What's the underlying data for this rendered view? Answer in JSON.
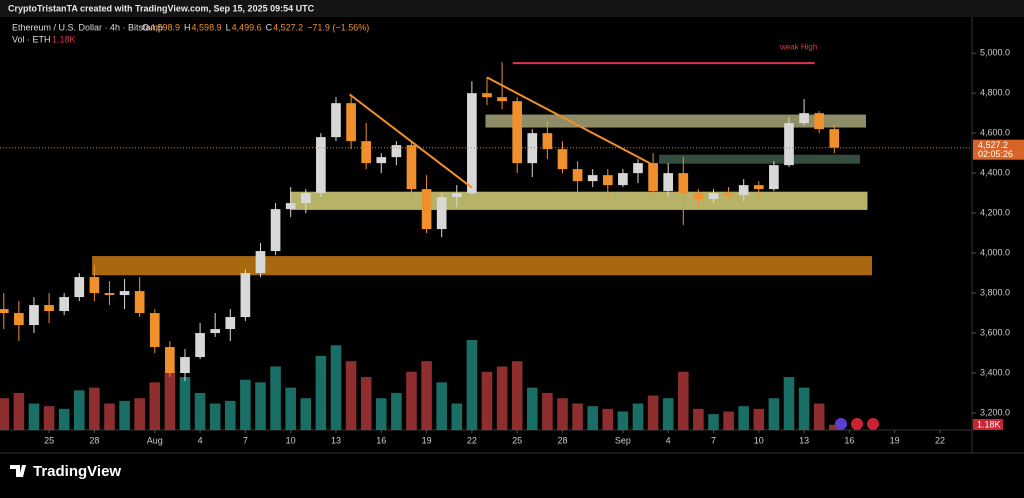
{
  "header": {
    "credit": "CryptoTristanTA created with TradingView.com, Sep 15, 2025 09:54 UTC",
    "brand": "TradingView"
  },
  "chart_data": {
    "type": "candlestick",
    "symbol": "Ethereum / U.S. Dollar · 4h · Bitstamp",
    "ohlc": [
      {
        "key": "O",
        "text": "4,598.9"
      },
      {
        "key": "H",
        "text": "4,598.9"
      },
      {
        "key": "L",
        "text": "4,499.6"
      },
      {
        "key": "C",
        "text": "4,527.2"
      },
      {
        "key": "",
        "text": "−71.9 (−1.56%)"
      }
    ],
    "volume_label": "Vol · ETH",
    "volume_text": "1.18K",
    "last_price": {
      "value": 4527.2,
      "label": "4,527.2"
    },
    "countdown": "02:05:26",
    "x": [
      22,
      23,
      24,
      25,
      26,
      27,
      28,
      29,
      30,
      31,
      32,
      33,
      34,
      35,
      36,
      37,
      38,
      39,
      40,
      41,
      42,
      43,
      44,
      45,
      46,
      47,
      48,
      49,
      50,
      51,
      52,
      53,
      54,
      55,
      56,
      57,
      58,
      59,
      60,
      61,
      62,
      63,
      64,
      65,
      66,
      67,
      68,
      69,
      70,
      71,
      72,
      73,
      74,
      75,
      76,
      77
    ],
    "open": [
      3720,
      3700,
      3640,
      3740,
      3710,
      3780,
      3880,
      3800,
      3790,
      3810,
      3700,
      3530,
      3400,
      3480,
      3600,
      3620,
      3680,
      3900,
      4010,
      4220,
      4250,
      4300,
      4580,
      4750,
      4560,
      4450,
      4480,
      4540,
      4320,
      4120,
      4280,
      4300,
      4800,
      4780,
      4760,
      4450,
      4600,
      4520,
      4420,
      4360,
      4390,
      4340,
      4400,
      4450,
      4310,
      4400,
      4300,
      4270,
      4300,
      4290,
      4340,
      4320,
      4440,
      4650,
      4700,
      4620
    ],
    "high": [
      3800,
      3760,
      3780,
      3800,
      3800,
      3900,
      3940,
      3860,
      3870,
      3880,
      3720,
      3560,
      3520,
      3650,
      3700,
      3720,
      3920,
      4050,
      4250,
      4330,
      4320,
      4600,
      4780,
      4790,
      4650,
      4500,
      4560,
      4560,
      4390,
      4300,
      4340,
      4860,
      4880,
      4955,
      4780,
      4620,
      4660,
      4560,
      4460,
      4420,
      4420,
      4420,
      4470,
      4500,
      4450,
      4480,
      4320,
      4320,
      4330,
      4370,
      4360,
      4460,
      4680,
      4770,
      4710,
      4640
    ],
    "low": [
      3620,
      3560,
      3600,
      3650,
      3690,
      3760,
      3760,
      3740,
      3720,
      3680,
      3500,
      3380,
      3360,
      3470,
      3580,
      3560,
      3660,
      3880,
      3990,
      4180,
      4200,
      4280,
      4560,
      4520,
      4420,
      4400,
      4440,
      4280,
      4100,
      4080,
      4230,
      4290,
      4740,
      4720,
      4400,
      4380,
      4470,
      4400,
      4300,
      4330,
      4280,
      4330,
      4350,
      4290,
      4280,
      4140,
      4230,
      4250,
      4270,
      4260,
      4280,
      4310,
      4430,
      4640,
      4600,
      4499.6
    ],
    "close": [
      3700,
      3640,
      3740,
      3710,
      3780,
      3880,
      3800,
      3790,
      3810,
      3700,
      3530,
      3400,
      3480,
      3600,
      3620,
      3680,
      3900,
      4010,
      4220,
      4250,
      4300,
      4580,
      4750,
      4560,
      4450,
      4480,
      4540,
      4320,
      4120,
      4280,
      4300,
      4800,
      4780,
      4760,
      4450,
      4600,
      4520,
      4420,
      4360,
      4390,
      4340,
      4400,
      4450,
      4310,
      4400,
      4300,
      4270,
      4300,
      4290,
      4340,
      4320,
      4440,
      4650,
      4700,
      4620,
      4527.2
    ],
    "volume": [
      12,
      14,
      10,
      9,
      8,
      15,
      16,
      10,
      11,
      12,
      18,
      22,
      20,
      14,
      10,
      11,
      19,
      18,
      24,
      16,
      12,
      28,
      32,
      26,
      20,
      12,
      14,
      22,
      26,
      18,
      10,
      34,
      22,
      24,
      26,
      16,
      14,
      12,
      10,
      9,
      8,
      7,
      10,
      13,
      12,
      22,
      8,
      6,
      7,
      9,
      8,
      12,
      20,
      16,
      10,
      2
    ],
    "up_color": "#d8d8d8",
    "down_color": "#f0902c",
    "vol_up": "#1f8a80",
    "vol_down": "#b23a3a",
    "xlim": [
      21.75,
      86.12
    ],
    "ylim": [
      3115,
      5181
    ],
    "yticks": [
      {
        "value": 3200,
        "label": "3,200.0"
      },
      {
        "value": 3400,
        "label": "3,400.0"
      },
      {
        "value": 3600,
        "label": "3,600.0"
      },
      {
        "value": 3800,
        "label": "3,800.0"
      },
      {
        "value": 4000,
        "label": "4,000.0"
      },
      {
        "value": 4200,
        "label": "4,200.0"
      },
      {
        "value": 4400,
        "label": "4,400.0"
      },
      {
        "value": 4600,
        "label": "4,600.0"
      },
      {
        "value": 4800,
        "label": "4,800.0"
      },
      {
        "value": 5000,
        "label": "5,000.0"
      }
    ],
    "xticks": [
      {
        "value": 25,
        "label": "25"
      },
      {
        "value": 28,
        "label": "28"
      },
      {
        "value": 32,
        "label": "Aug"
      },
      {
        "value": 35,
        "label": "4"
      },
      {
        "value": 38,
        "label": "7"
      },
      {
        "value": 41,
        "label": "10"
      },
      {
        "value": 44,
        "label": "13"
      },
      {
        "value": 47,
        "label": "16"
      },
      {
        "value": 50,
        "label": "19"
      },
      {
        "value": 53,
        "label": "22"
      },
      {
        "value": 56,
        "label": "25"
      },
      {
        "value": 59,
        "label": "28"
      },
      {
        "value": 63,
        "label": "Sep"
      },
      {
        "value": 66,
        "label": "4"
      },
      {
        "value": 69,
        "label": "7"
      },
      {
        "value": 72,
        "label": "10"
      },
      {
        "value": 75,
        "label": "13"
      },
      {
        "value": 78,
        "label": "16"
      },
      {
        "value": 81,
        "label": "19"
      },
      {
        "value": 84,
        "label": "22"
      }
    ],
    "zones": [
      {
        "x": [
          27.85,
          79.5
        ],
        "y": [
          3889,
          3985
        ],
        "color": "#c77a12"
      },
      {
        "x": [
          40.96,
          79.2
        ],
        "y": [
          4216,
          4307
        ],
        "color": "#d6d27a"
      },
      {
        "x": [
          53.9,
          79.1
        ],
        "y": [
          4628,
          4693
        ],
        "color": "#a8a67a"
      },
      {
        "x": [
          65.4,
          78.7
        ],
        "y": [
          4447,
          4492
        ],
        "color": "#3e5a4a"
      }
    ],
    "trendlines": [
      {
        "x": [
          44.9,
          53.0
        ],
        "y": [
          4794,
          4327
        ],
        "color": "#f0902c"
      },
      {
        "x": [
          54.0,
          65.1
        ],
        "y": [
          4879,
          4437
        ],
        "color": "#f0902c"
      },
      {
        "x": [
          55.7,
          75.7
        ],
        "y": [
          4950,
          4950
        ],
        "color": "#e0344a",
        "label": "weak High"
      }
    ]
  }
}
